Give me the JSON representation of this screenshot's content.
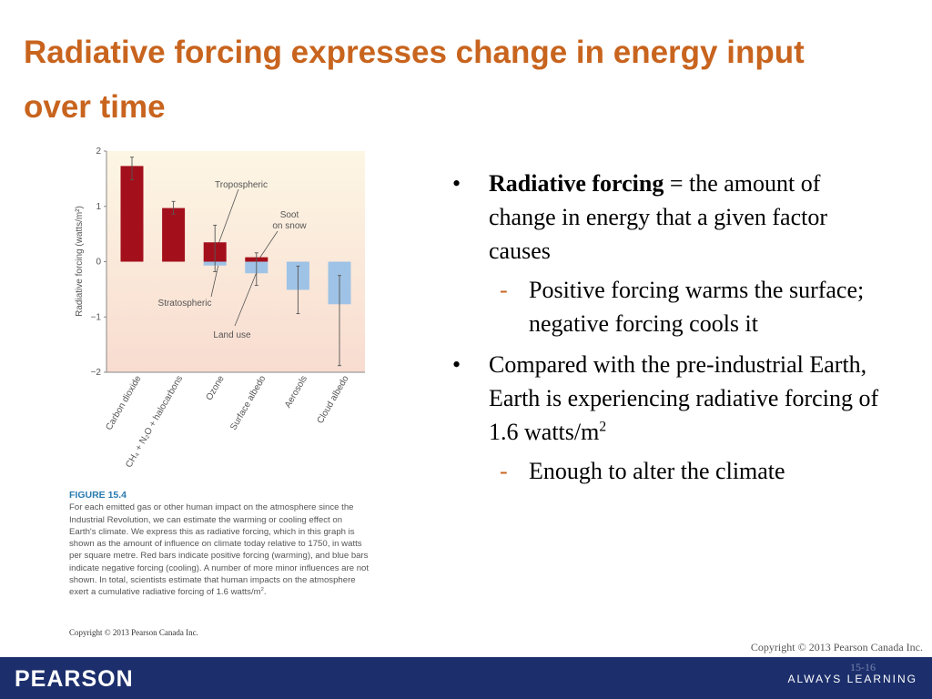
{
  "title": "Radiative forcing expresses change in energy input over time",
  "chart_data": {
    "type": "bar",
    "ylabel": "Radiative forcing (watts/m²)",
    "categories": [
      "Carbon dioxide",
      "CH₄ + N₂O + halocarbons",
      "Ozone",
      "Surface albedo",
      "Aerosols",
      "Cloud albedo"
    ],
    "series": [
      {
        "color": "#a3101c",
        "values": [
          1.73,
          0.97,
          0.35,
          0.08,
          null,
          null
        ]
      },
      {
        "color": "#9fc3e6",
        "values": [
          null,
          null,
          -0.07,
          -0.21,
          -0.51,
          -0.77
        ]
      }
    ],
    "error_high": [
      1.89,
      1.09,
      0.66,
      0.16,
      -0.08,
      -0.25
    ],
    "error_low": [
      1.48,
      0.86,
      -0.18,
      -0.43,
      -0.94,
      -1.88
    ],
    "ylim": [
      -2,
      2
    ],
    "yticks": [
      {
        "value": -2,
        "label": "−2"
      },
      {
        "value": -1,
        "label": "−1"
      },
      0,
      1,
      2
    ],
    "annotations": [
      [
        "Tropospheric"
      ],
      [
        "Soot",
        "on snow"
      ],
      [
        "Stratospheric"
      ],
      [
        "Land use"
      ]
    ]
  },
  "caption": {
    "label": "FIGURE 15.4",
    "text": "For each emitted gas or other human impact on the atmosphere since the Industrial Revolution, we can estimate the warming or cooling effect on Earth's climate. We express this as radiative forcing, which in this graph is shown as the amount of influence on climate today relative to 1750, in watts per square metre. Red bars indicate positive forcing (warming), and blue bars indicate negative forcing (cooling). A number of more minor influences are not shown. In total, scientists estimate that human impacts on the atmosphere exert a cumulative radiative forcing of 1.6 watts/m",
    "sup": "2",
    "end": "."
  },
  "figure_copyright": "Copyright © 2013 Pearson Canada Inc.",
  "bullets": [
    {
      "bold": "Radiative forcing",
      "text": " = the amount of change in energy that a given factor causes",
      "sub": [
        "Positive forcing warms the surface; negative forcing cools it"
      ]
    },
    {
      "text": "Compared with the pre-industrial Earth,  Earth is experiencing radiative forcing of 1.6 watts/m",
      "sup": "2",
      "sub": [
        "Enough to alter the climate"
      ]
    }
  ],
  "footer": {
    "copyright": "Copyright © 2013 Pearson Canada Inc.",
    "page": "15-16",
    "brand": "PEARSON",
    "tagline": "ALWAYS LEARNING"
  }
}
